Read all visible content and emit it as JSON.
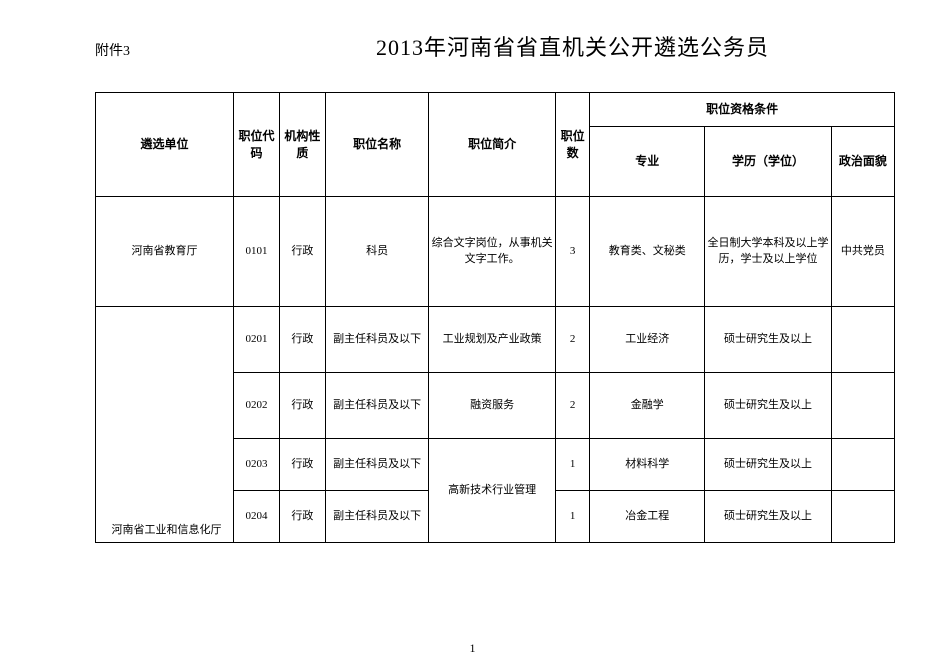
{
  "attachment_label": "附件3",
  "main_title": "2013年河南省省直机关公开遴选公务员",
  "headers": {
    "unit": "遴选单位",
    "code": "职位代码",
    "nature": "机构性质",
    "posname": "职位名称",
    "desc": "职位简介",
    "count": "职位数",
    "qualification_group": "职位资格条件",
    "major": "专业",
    "education": "学历（学位）",
    "politics": "政治面貌"
  },
  "rows": [
    {
      "unit": "河南省教育厅",
      "code": "0101",
      "nature": "行政",
      "posname": "科员",
      "desc": "综合文字岗位，从事机关文字工作。",
      "count": "3",
      "major": "教育类、文秘类",
      "education": "全日制大学本科及以上学历，学士及以上学位",
      "politics": "中共党员"
    },
    {
      "unit": "",
      "code": "0201",
      "nature": "行政",
      "posname": "副主任科员及以下",
      "desc": "工业规划及产业政策",
      "count": "2",
      "major": "工业经济",
      "education": "硕士研究生及以上",
      "politics": ""
    },
    {
      "unit": "",
      "code": "0202",
      "nature": "行政",
      "posname": "副主任科员及以下",
      "desc": "融资服务",
      "count": "2",
      "major": "金融学",
      "education": "硕士研究生及以上",
      "politics": ""
    },
    {
      "unit": "",
      "code": "0203",
      "nature": "行政",
      "posname": "副主任科员及以下",
      "desc_merged": "高新技术行业管理",
      "count": "1",
      "major": "材料科学",
      "education": "硕士研究生及以上",
      "politics": ""
    },
    {
      "unit": "",
      "code": "0204",
      "nature": "行政",
      "posname": "副主任科员及以下",
      "desc": "",
      "count": "1",
      "major": "冶金工程",
      "education": "硕士研究生及以上",
      "politics": ""
    }
  ],
  "second_unit": "河南省工业和信息化厅",
  "page_number": "1",
  "colors": {
    "background": "#ffffff",
    "border": "#000000",
    "text": "#000000"
  }
}
